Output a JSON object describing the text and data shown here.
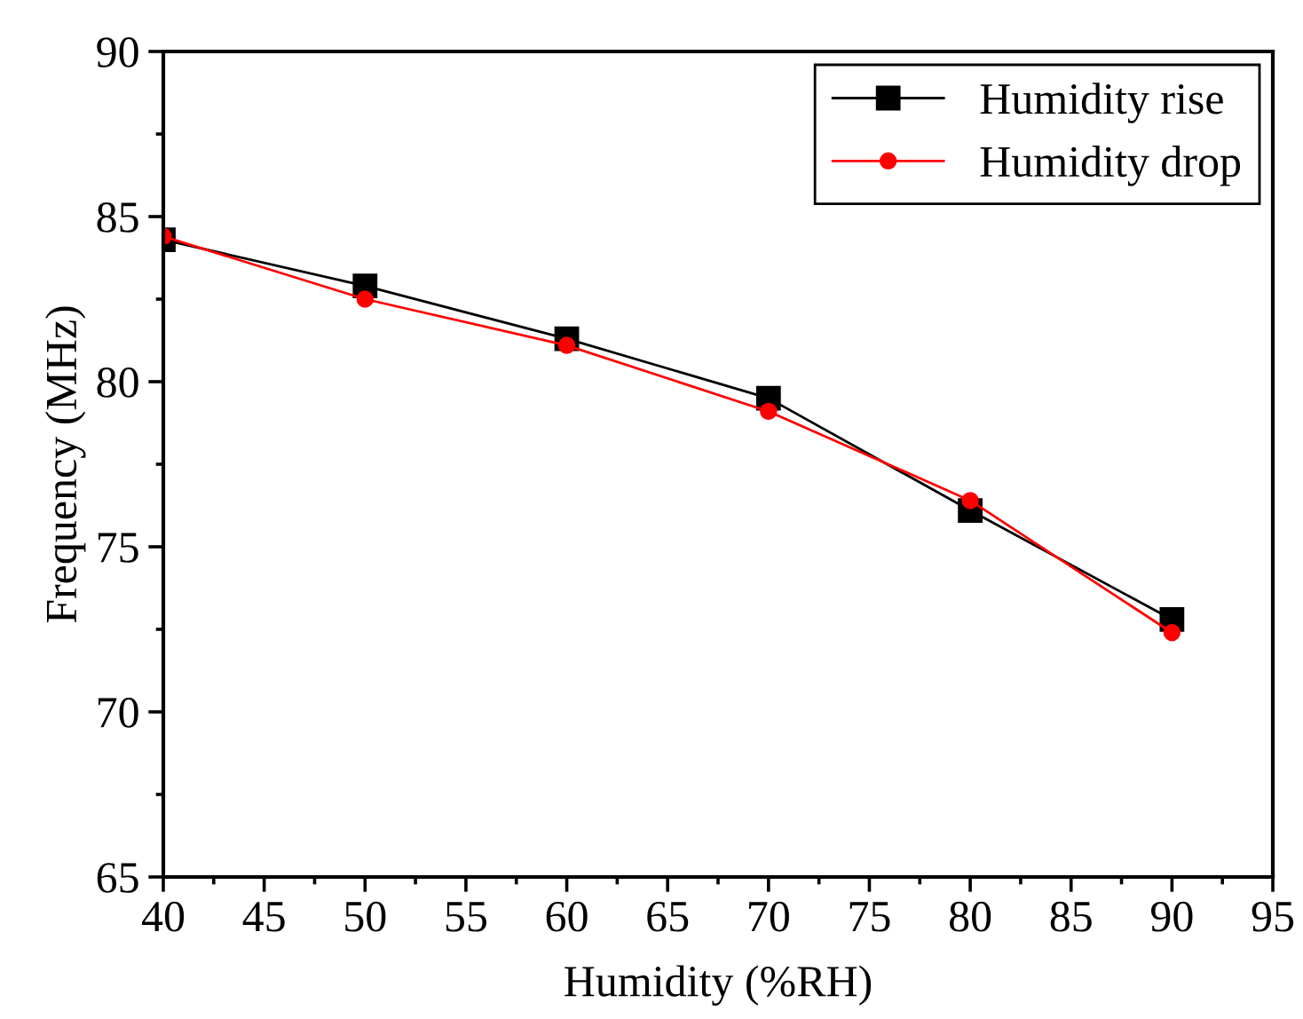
{
  "chart_data": {
    "type": "line",
    "xlabel": "Humidity (%RH)",
    "ylabel": "Frequency (MHz)",
    "x": [
      40,
      50,
      60,
      70,
      80,
      90
    ],
    "series": [
      {
        "name": "Humidity rise",
        "color": "#000000",
        "marker": "square",
        "values": [
          84.3,
          82.9,
          81.3,
          79.5,
          76.1,
          72.8
        ]
      },
      {
        "name": "Humidity drop",
        "color": "#ff0000",
        "marker": "circle",
        "values": [
          84.4,
          82.5,
          81.1,
          79.1,
          76.4,
          72.4
        ]
      }
    ],
    "xlim": [
      40,
      95
    ],
    "xticks": [
      40,
      45,
      50,
      55,
      60,
      65,
      70,
      75,
      80,
      85,
      90,
      95
    ],
    "ylim": [
      65,
      90
    ],
    "yticks": [
      65,
      70,
      75,
      80,
      85,
      90
    ],
    "grid": false,
    "legend": "top right",
    "line_style": "solid"
  }
}
